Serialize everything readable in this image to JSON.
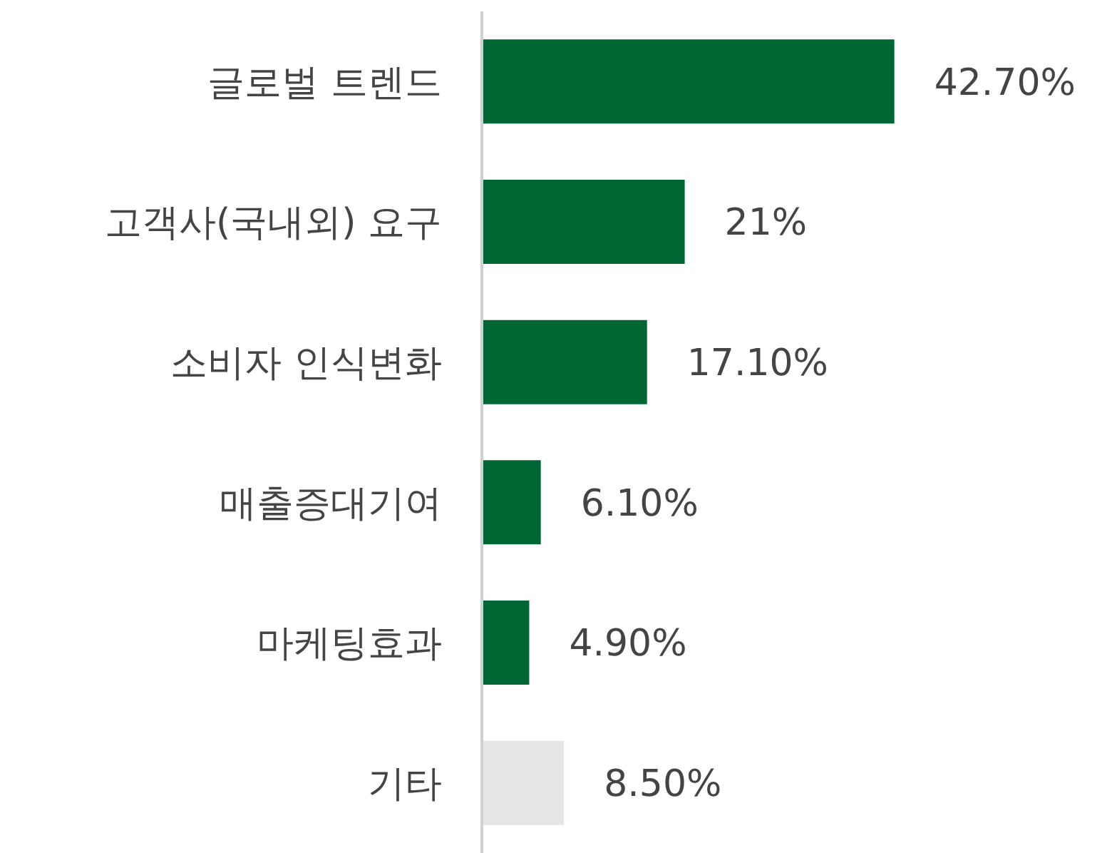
{
  "chart_data": {
    "type": "bar",
    "orientation": "horizontal",
    "categories": [
      "글로벌 트렌드",
      "고객사(국내외) 요구",
      "소비자 인식변화",
      "매출증대기여",
      "마케팅효과",
      "기타"
    ],
    "values": [
      42.7,
      21,
      17.1,
      6.1,
      4.9,
      8.5
    ],
    "colors": [
      "#006633",
      "#006633",
      "#006633",
      "#006633",
      "#006633",
      "#e6e4e4"
    ],
    "value_labels": [
      "42.70%",
      "21%",
      "17.10%",
      "6.10%",
      "4.90%",
      "8.50%"
    ],
    "grid": false,
    "legend": false
  }
}
